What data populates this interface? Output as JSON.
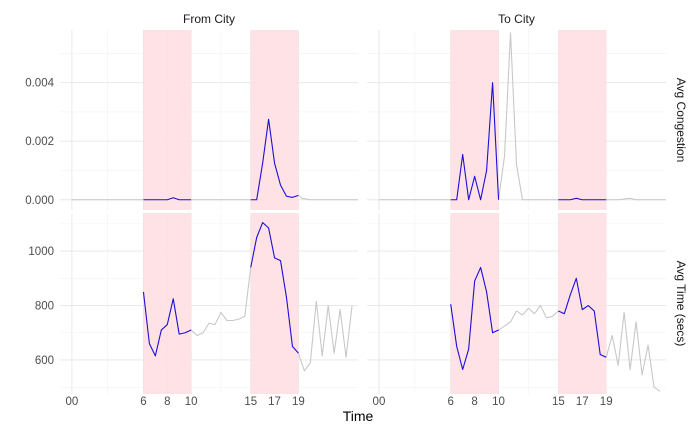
{
  "chart_data": {
    "type": "line",
    "xlabel": "Time",
    "facet_cols": [
      "From City",
      "To City"
    ],
    "facet_rows": [
      "Avg Congestion",
      "Avg Time (secs)"
    ],
    "x_ticks": [
      {
        "x": 0,
        "label": "00"
      },
      {
        "x": 6,
        "label": "6"
      },
      {
        "x": 8,
        "label": "8"
      },
      {
        "x": 10,
        "label": "10"
      },
      {
        "x": 15,
        "label": "15"
      },
      {
        "x": 17,
        "label": "17"
      },
      {
        "x": 19,
        "label": "19"
      }
    ],
    "x_range": [
      -1,
      24
    ],
    "highlight_bands": [
      [
        6,
        10
      ],
      [
        15,
        19
      ]
    ],
    "rows": {
      "Avg Congestion": {
        "ylim": [
          -0.00035,
          0.0058
        ],
        "y_ticks": [
          0,
          0.002,
          0.004
        ],
        "y_tick_labels": [
          "0.000",
          "0.002",
          "0.004"
        ],
        "y_minor": [
          0.001,
          0.003,
          0.005
        ]
      },
      "Avg Time (secs)": {
        "ylim": [
          475,
          1140
        ],
        "y_ticks": [
          600,
          800,
          1000
        ],
        "y_tick_labels": [
          "600",
          "800",
          "1000"
        ],
        "y_minor": [
          500,
          700,
          900,
          1100
        ]
      }
    },
    "colors": {
      "peak": "#1a0fd6",
      "offpeak": "#c8c8c8",
      "band": "#ffdfe3"
    },
    "panels": [
      {
        "col": "From City",
        "row": "Avg Congestion",
        "offpeak": [
          [
            0,
            0
          ],
          [
            6,
            0
          ]
        ],
        "peak": [
          [
            6,
            0
          ],
          [
            6.5,
            0
          ],
          [
            7,
            0
          ],
          [
            7.5,
            0
          ],
          [
            8,
            0
          ],
          [
            8.5,
            7e-05
          ],
          [
            9,
            0
          ],
          [
            9.5,
            0
          ],
          [
            10,
            0
          ]
        ],
        "offpeak2": [
          [
            10,
            0
          ],
          [
            15,
            0
          ]
        ],
        "peak2": [
          [
            15,
            0
          ],
          [
            15.5,
            0
          ],
          [
            16,
            0.00125
          ],
          [
            16.5,
            0.00275
          ],
          [
            17,
            0.00125
          ],
          [
            17.5,
            0.0005
          ],
          [
            18,
            0.00012
          ],
          [
            18.5,
            8e-05
          ],
          [
            19,
            0.00015
          ]
        ],
        "offpeak3": [
          [
            19,
            0.00015
          ],
          [
            19.3,
            5e-05
          ],
          [
            20,
            0
          ],
          [
            24,
            0
          ]
        ]
      },
      {
        "col": "To City",
        "row": "Avg Congestion",
        "offpeak": [
          [
            0,
            0
          ],
          [
            6,
            0
          ]
        ],
        "peak": [
          [
            6,
            0
          ],
          [
            6.5,
            0
          ],
          [
            7,
            0.00155
          ],
          [
            7.5,
            0
          ],
          [
            8,
            0.0008
          ],
          [
            8.5,
            0
          ],
          [
            9,
            0.001
          ],
          [
            9.5,
            0.004
          ],
          [
            10,
            0
          ]
        ],
        "offpeak2": [
          [
            10,
            0
          ],
          [
            10.5,
            0.0015
          ],
          [
            11,
            0.0057
          ],
          [
            11.5,
            0.0012
          ],
          [
            12,
            0
          ],
          [
            15,
            0
          ]
        ],
        "peak2": [
          [
            15,
            0
          ],
          [
            15.5,
            0
          ],
          [
            16,
            0
          ],
          [
            16.5,
            5e-05
          ],
          [
            17,
            0
          ],
          [
            19,
            0
          ]
        ],
        "offpeak3": [
          [
            19,
            0
          ],
          [
            20,
            0
          ],
          [
            21,
            5e-05
          ],
          [
            21.5,
            0
          ],
          [
            24,
            0
          ]
        ]
      },
      {
        "col": "From City",
        "row": "Avg Time (secs)",
        "offpeak": [],
        "peak": [
          [
            6,
            850
          ],
          [
            6.5,
            660
          ],
          [
            7,
            615
          ],
          [
            7.5,
            710
          ],
          [
            8,
            730
          ],
          [
            8.5,
            825
          ],
          [
            9,
            695
          ],
          [
            9.5,
            700
          ],
          [
            10,
            710
          ]
        ],
        "offpeak2": [
          [
            10,
            710
          ],
          [
            10.5,
            690
          ],
          [
            11,
            700
          ],
          [
            11.5,
            735
          ],
          [
            12,
            730
          ],
          [
            12.5,
            775
          ],
          [
            13,
            745
          ],
          [
            13.5,
            745
          ],
          [
            14,
            750
          ],
          [
            14.5,
            760
          ],
          [
            15,
            940
          ]
        ],
        "peak2": [
          [
            15,
            940
          ],
          [
            15.5,
            1050
          ],
          [
            16,
            1105
          ],
          [
            16.5,
            1085
          ],
          [
            17,
            975
          ],
          [
            17.5,
            965
          ],
          [
            18,
            830
          ],
          [
            18.5,
            650
          ],
          [
            19,
            625
          ]
        ],
        "offpeak3": [
          [
            19,
            625
          ],
          [
            19.5,
            560
          ],
          [
            20,
            590
          ],
          [
            20.5,
            815
          ],
          [
            21,
            615
          ],
          [
            21.5,
            800
          ],
          [
            22,
            625
          ],
          [
            22.5,
            785
          ],
          [
            23,
            610
          ],
          [
            23.5,
            800
          ]
        ]
      },
      {
        "col": "To City",
        "row": "Avg Time (secs)",
        "offpeak": [],
        "peak": [
          [
            6,
            805
          ],
          [
            6.5,
            650
          ],
          [
            7,
            565
          ],
          [
            7.5,
            640
          ],
          [
            8,
            890
          ],
          [
            8.5,
            940
          ],
          [
            9,
            850
          ],
          [
            9.5,
            700
          ],
          [
            10,
            710
          ]
        ],
        "offpeak2": [
          [
            10,
            710
          ],
          [
            10.5,
            725
          ],
          [
            11,
            740
          ],
          [
            11.5,
            780
          ],
          [
            12,
            765
          ],
          [
            12.5,
            790
          ],
          [
            13,
            770
          ],
          [
            13.5,
            800
          ],
          [
            14,
            755
          ],
          [
            14.5,
            760
          ],
          [
            15,
            780
          ]
        ],
        "peak2": [
          [
            15,
            780
          ],
          [
            15.5,
            770
          ],
          [
            16,
            840
          ],
          [
            16.5,
            900
          ],
          [
            17,
            785
          ],
          [
            17.5,
            800
          ],
          [
            18,
            780
          ],
          [
            18.5,
            620
          ],
          [
            19,
            610
          ]
        ],
        "offpeak3": [
          [
            19,
            610
          ],
          [
            19.5,
            690
          ],
          [
            20,
            580
          ],
          [
            20.5,
            775
          ],
          [
            21,
            565
          ],
          [
            21.5,
            740
          ],
          [
            22,
            545
          ],
          [
            22.5,
            655
          ],
          [
            23,
            500
          ],
          [
            23.5,
            485
          ]
        ]
      }
    ]
  }
}
